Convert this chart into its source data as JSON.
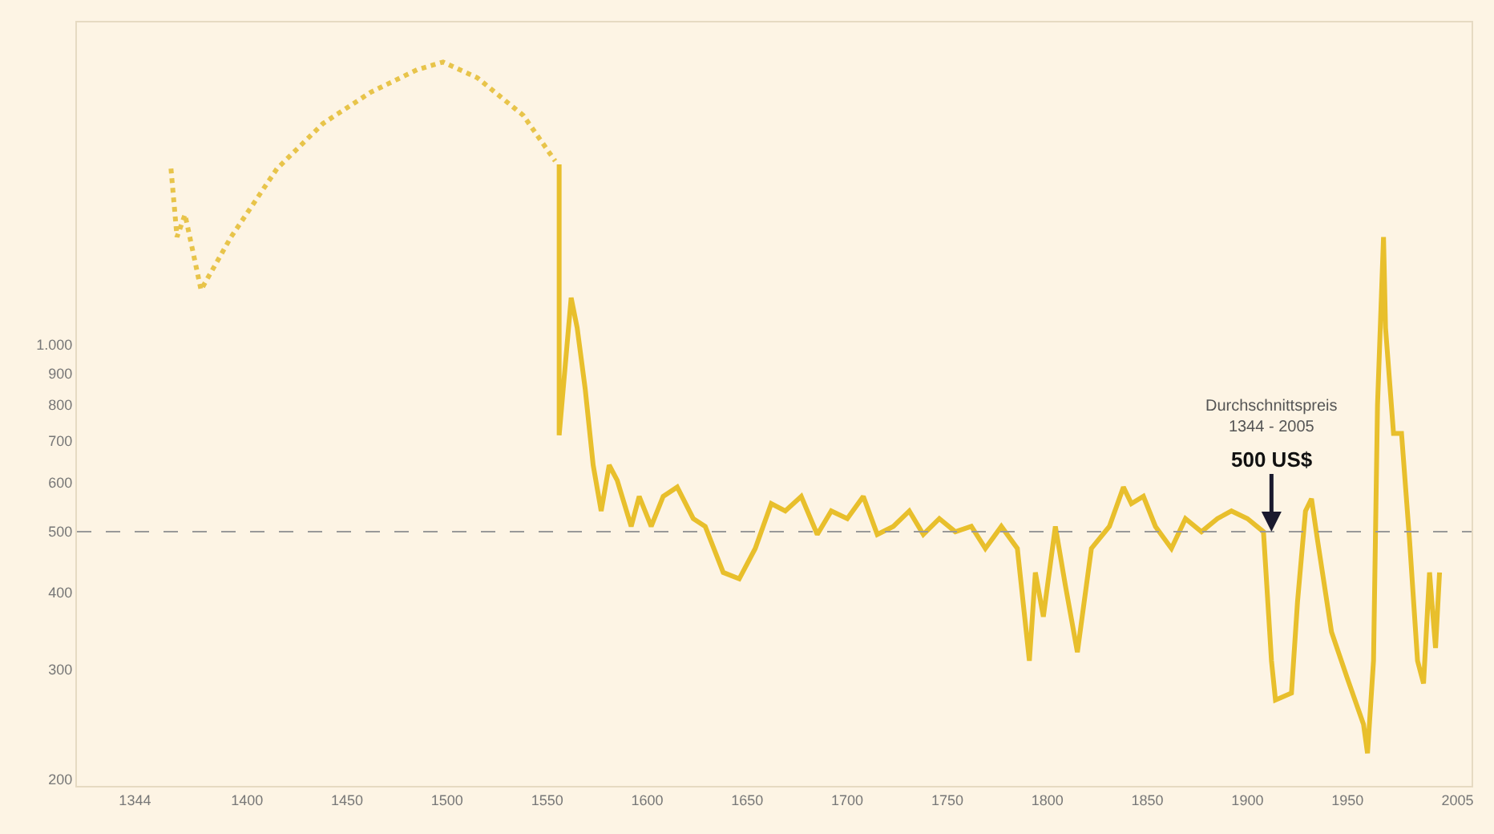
{
  "chart_data": {
    "type": "line",
    "log": "y",
    "grid": false,
    "xlim": [
      1315,
      2012
    ],
    "ylim": [
      195,
      3300
    ],
    "xticks": [
      1344,
      1400,
      1450,
      1500,
      1550,
      1600,
      1650,
      1700,
      1750,
      1800,
      1850,
      1900,
      1950,
      2005
    ],
    "yticks": [
      200,
      300,
      400,
      500,
      600,
      700,
      800,
      900,
      {
        "value": 1000,
        "label": "1.000"
      }
    ],
    "series": [
      {
        "color": "#e8c44a",
        "line_style": "dotted",
        "x": [
          1362,
          1365,
          1369,
          1373,
          1377,
          1392,
          1415,
          1438,
          1462,
          1485,
          1498,
          1515,
          1538,
          1554
        ],
        "values": [
          1920,
          1490,
          1620,
          1410,
          1225,
          1490,
          1920,
          2270,
          2550,
          2770,
          2850,
          2690,
          2340,
          1975
        ]
      },
      {
        "color": "#e8bf2c",
        "line_style": "solid",
        "x": [
          1556,
          1556,
          1562,
          1565,
          1569,
          1573,
          1577,
          1581,
          1585,
          1592,
          1596,
          1602,
          1608,
          1615,
          1623,
          1629,
          1638,
          1646,
          1654,
          1662,
          1669,
          1677,
          1685,
          1692,
          1700,
          1708,
          1715,
          1723,
          1731,
          1738,
          1746,
          1754,
          1762,
          1769,
          1777,
          1785,
          1791,
          1794,
          1798,
          1804,
          1809,
          1815,
          1822,
          1831,
          1838,
          1842,
          1848,
          1854,
          1862,
          1869,
          1877,
          1885,
          1892,
          1900,
          1908,
          1912,
          1914,
          1922,
          1925,
          1929,
          1932,
          1935,
          1942,
          1950,
          1958,
          1960,
          1963,
          1965,
          1968,
          1969,
          1973,
          1977,
          1981,
          1985,
          1988,
          1991,
          1994,
          1996
        ],
        "values": [
          1950,
          715,
          1190,
          1065,
          850,
          640,
          540,
          640,
          605,
          510,
          570,
          510,
          570,
          590,
          525,
          510,
          430,
          420,
          470,
          555,
          540,
          570,
          495,
          540,
          525,
          570,
          495,
          510,
          540,
          495,
          525,
          500,
          510,
          470,
          510,
          470,
          310,
          430,
          365,
          510,
          410,
          320,
          470,
          510,
          590,
          555,
          570,
          510,
          470,
          525,
          500,
          525,
          540,
          525,
          500,
          310,
          268,
          275,
          385,
          540,
          565,
          485,
          345,
          290,
          245,
          220,
          310,
          800,
          1490,
          1065,
          720,
          720,
          485,
          310,
          285,
          430,
          325,
          430
        ]
      }
    ],
    "ref_lines": [
      {
        "axis": "y",
        "value": 500,
        "color": "#999999",
        "line_style": "dashed"
      }
    ],
    "annotations": [
      {
        "text": "Durchschnittspreis\n1344 - 2005"
      },
      {
        "text": "500 US$",
        "x": 1912,
        "y": 500
      }
    ]
  }
}
